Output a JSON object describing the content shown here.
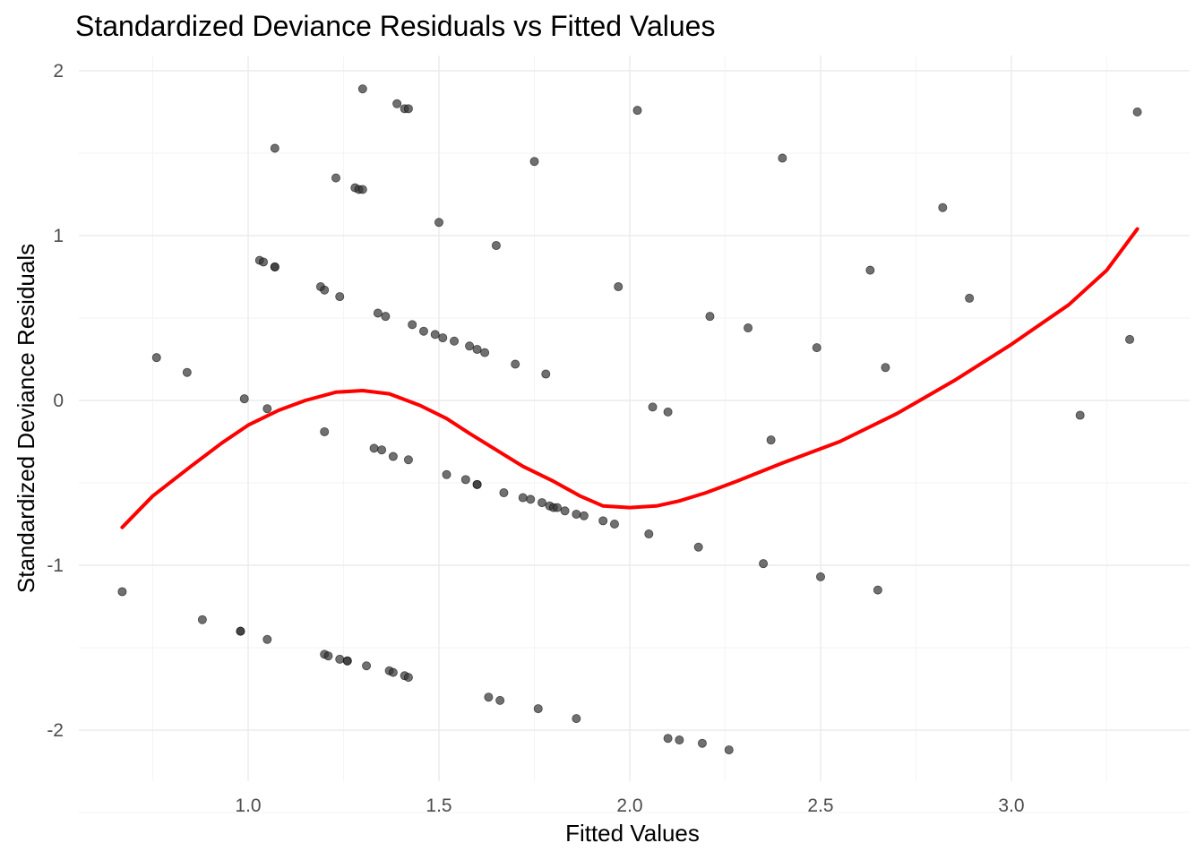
{
  "chart_data": {
    "type": "scatter",
    "title": "Standardized Deviance Residuals vs Fitted Values",
    "xlabel": "Fitted Values",
    "ylabel": "Standardized Deviance Residuals",
    "xlim": [
      0.6,
      3.4
    ],
    "ylim": [
      -2.3,
      2.1
    ],
    "x_ticks": [
      1.0,
      1.5,
      2.0,
      2.5,
      3.0
    ],
    "x_tick_labels": [
      "1.0",
      "1.5",
      "2.0",
      "2.5",
      "3.0"
    ],
    "y_ticks": [
      -2,
      -1,
      0,
      1,
      2
    ],
    "y_tick_labels": [
      "-2",
      "-1",
      "0",
      "1",
      "2"
    ],
    "grid": true,
    "legend": "none",
    "point_color": "#333333",
    "line_color": "#ff0000",
    "series": [
      {
        "type": "scatter",
        "points": [
          [
            0.67,
            -1.16
          ],
          [
            0.76,
            0.26
          ],
          [
            0.84,
            0.17
          ],
          [
            0.88,
            -1.33
          ],
          [
            0.98,
            -1.4
          ],
          [
            0.98,
            -1.4
          ],
          [
            0.99,
            0.01
          ],
          [
            1.03,
            0.85
          ],
          [
            1.04,
            0.84
          ],
          [
            1.05,
            -0.05
          ],
          [
            1.05,
            -1.45
          ],
          [
            1.07,
            1.53
          ],
          [
            1.07,
            0.81
          ],
          [
            1.07,
            0.81
          ],
          [
            1.19,
            0.69
          ],
          [
            1.2,
            0.67
          ],
          [
            1.2,
            -0.19
          ],
          [
            1.2,
            -1.54
          ],
          [
            1.21,
            -1.55
          ],
          [
            1.23,
            1.35
          ],
          [
            1.24,
            0.63
          ],
          [
            1.24,
            -1.57
          ],
          [
            1.26,
            -1.58
          ],
          [
            1.26,
            -1.58
          ],
          [
            1.28,
            1.29
          ],
          [
            1.29,
            1.28
          ],
          [
            1.3,
            1.28
          ],
          [
            1.3,
            1.89
          ],
          [
            1.31,
            -1.61
          ],
          [
            1.33,
            -0.29
          ],
          [
            1.34,
            0.53
          ],
          [
            1.35,
            -0.3
          ],
          [
            1.36,
            0.51
          ],
          [
            1.37,
            -1.64
          ],
          [
            1.38,
            -1.65
          ],
          [
            1.38,
            -0.34
          ],
          [
            1.39,
            1.8
          ],
          [
            1.41,
            1.77
          ],
          [
            1.42,
            1.77
          ],
          [
            1.41,
            -1.67
          ],
          [
            1.42,
            -1.68
          ],
          [
            1.42,
            -0.36
          ],
          [
            1.43,
            0.46
          ],
          [
            1.46,
            0.42
          ],
          [
            1.49,
            0.4
          ],
          [
            1.5,
            1.08
          ],
          [
            1.51,
            0.38
          ],
          [
            1.52,
            -0.45
          ],
          [
            1.54,
            0.36
          ],
          [
            1.57,
            -0.48
          ],
          [
            1.58,
            0.33
          ],
          [
            1.6,
            -0.51
          ],
          [
            1.6,
            -0.51
          ],
          [
            1.6,
            0.31
          ],
          [
            1.62,
            0.29
          ],
          [
            1.63,
            -1.8
          ],
          [
            1.65,
            0.94
          ],
          [
            1.66,
            -1.82
          ],
          [
            1.67,
            -0.56
          ],
          [
            1.7,
            0.22
          ],
          [
            1.72,
            -0.59
          ],
          [
            1.74,
            -0.6
          ],
          [
            1.75,
            1.45
          ],
          [
            1.76,
            -1.87
          ],
          [
            1.77,
            -0.62
          ],
          [
            1.78,
            0.16
          ],
          [
            1.79,
            -0.64
          ],
          [
            1.8,
            -0.65
          ],
          [
            1.81,
            -0.65
          ],
          [
            1.83,
            -0.67
          ],
          [
            1.86,
            -1.93
          ],
          [
            1.86,
            -0.69
          ],
          [
            1.88,
            -0.7
          ],
          [
            1.93,
            -0.73
          ],
          [
            1.96,
            -0.75
          ],
          [
            1.97,
            0.69
          ],
          [
            2.02,
            1.76
          ],
          [
            2.05,
            -0.81
          ],
          [
            2.06,
            -0.04
          ],
          [
            2.1,
            -2.05
          ],
          [
            2.1,
            -0.07
          ],
          [
            2.13,
            -2.06
          ],
          [
            2.18,
            -0.89
          ],
          [
            2.19,
            -2.08
          ],
          [
            2.21,
            0.51
          ],
          [
            2.26,
            -2.12
          ],
          [
            2.31,
            0.44
          ],
          [
            2.35,
            -0.99
          ],
          [
            2.37,
            -0.24
          ],
          [
            2.4,
            1.47
          ],
          [
            2.49,
            0.32
          ],
          [
            2.5,
            -1.07
          ],
          [
            2.63,
            0.79
          ],
          [
            2.65,
            -1.15
          ],
          [
            2.67,
            0.2
          ],
          [
            2.82,
            1.17
          ],
          [
            2.89,
            0.62
          ],
          [
            3.18,
            -0.09
          ],
          [
            3.31,
            0.37
          ],
          [
            3.33,
            1.75
          ]
        ]
      },
      {
        "type": "line",
        "x": [
          0.67,
          0.75,
          0.85,
          0.93,
          1.0,
          1.08,
          1.15,
          1.23,
          1.3,
          1.37,
          1.45,
          1.52,
          1.58,
          1.65,
          1.72,
          1.8,
          1.87,
          1.93,
          2.0,
          2.07,
          2.13,
          2.2,
          2.28,
          2.4,
          2.55,
          2.7,
          2.85,
          3.0,
          3.15,
          3.25,
          3.33
        ],
        "y": [
          -0.77,
          -0.58,
          -0.4,
          -0.26,
          -0.15,
          -0.06,
          0.0,
          0.05,
          0.06,
          0.04,
          -0.03,
          -0.11,
          -0.2,
          -0.3,
          -0.4,
          -0.49,
          -0.58,
          -0.64,
          -0.65,
          -0.64,
          -0.61,
          -0.56,
          -0.49,
          -0.38,
          -0.25,
          -0.08,
          0.12,
          0.34,
          0.58,
          0.79,
          1.04
        ]
      }
    ]
  }
}
